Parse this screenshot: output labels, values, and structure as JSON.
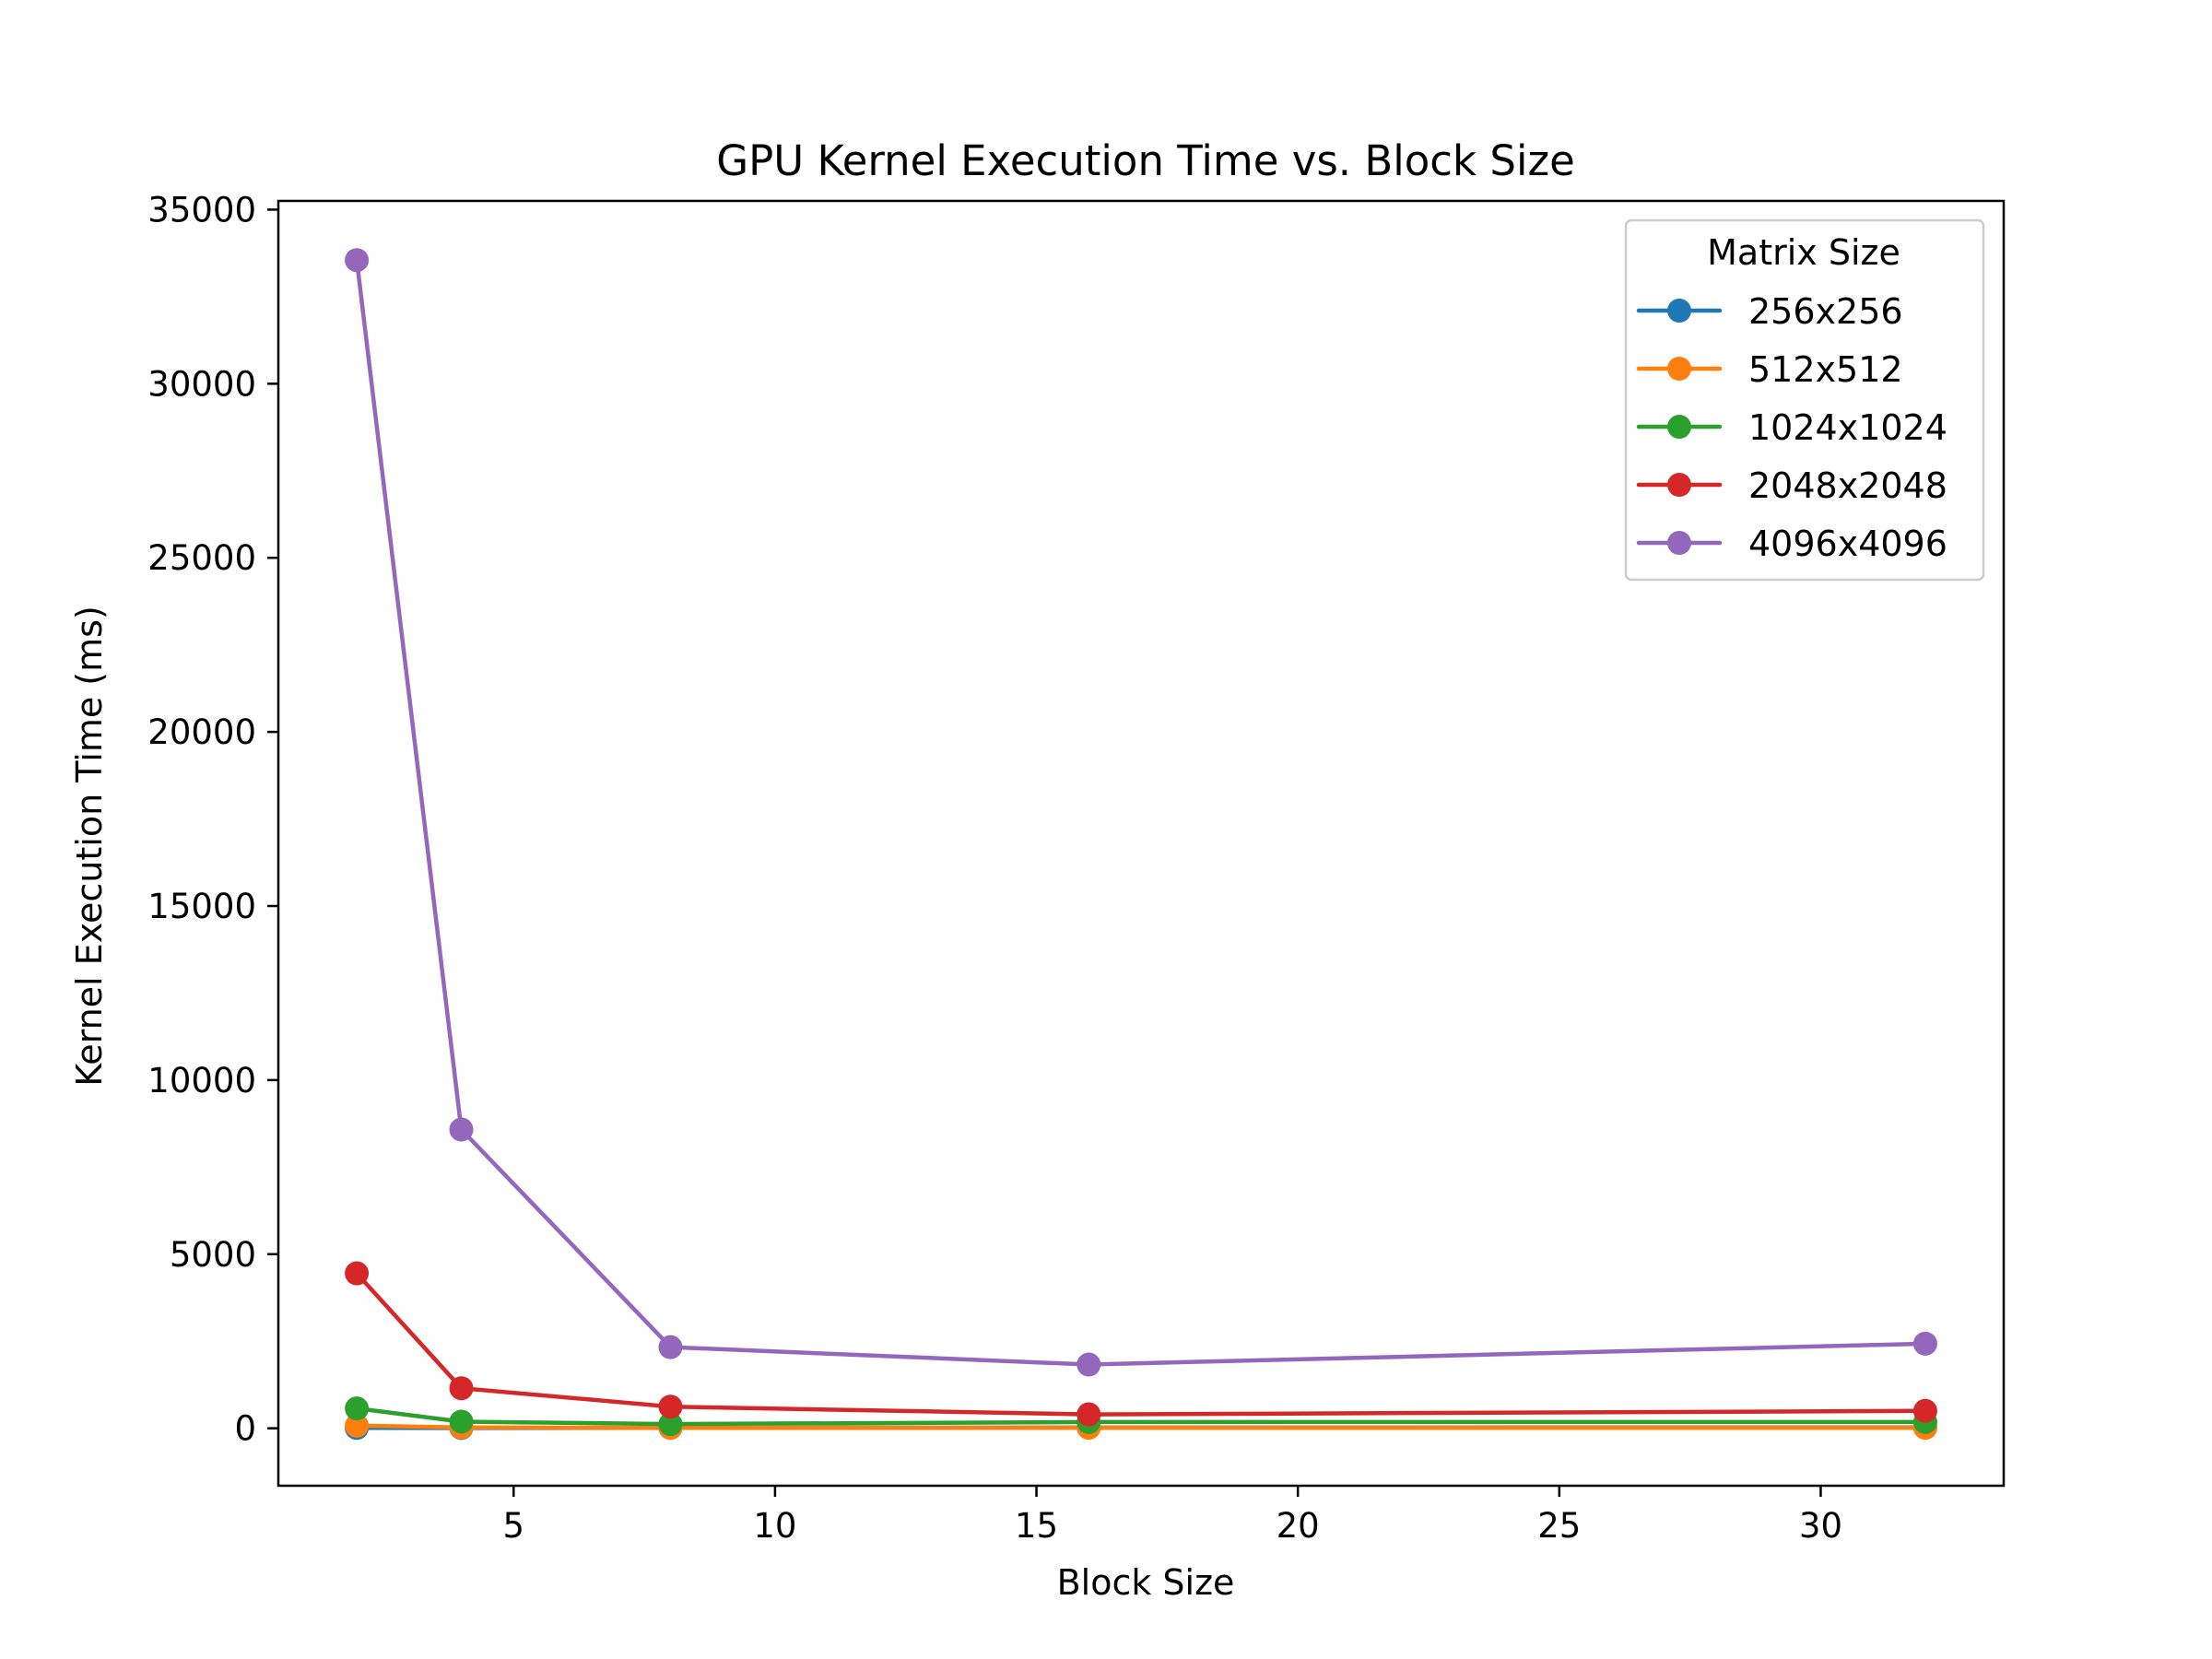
{
  "chart_data": {
    "type": "line",
    "title": "GPU Kernel Execution Time vs. Block Size",
    "xlabel": "Block Size",
    "ylabel": "Kernel Execution Time (ms)",
    "xlim": [
      0.5,
      33.5
    ],
    "ylim": [
      -1650,
      35250
    ],
    "xticks": [
      5,
      10,
      15,
      20,
      25,
      30
    ],
    "yticks": [
      0,
      5000,
      10000,
      15000,
      20000,
      25000,
      30000,
      35000
    ],
    "grid": false,
    "legend": {
      "title": "Matrix Size",
      "placement": "top-right"
    },
    "x": [
      2,
      4,
      8,
      16,
      32
    ],
    "series": [
      {
        "name": "256x256",
        "color": "#1f77b4",
        "values": [
          10,
          8,
          15,
          20,
          25
        ]
      },
      {
        "name": "512x512",
        "color": "#ff7f0e",
        "values": [
          75,
          25,
          10,
          15,
          15
        ]
      },
      {
        "name": "1024x1024",
        "color": "#2ca02c",
        "values": [
          570,
          190,
          120,
          180,
          180
        ]
      },
      {
        "name": "2048x2048",
        "color": "#d62728",
        "values": [
          4450,
          1150,
          620,
          400,
          500
        ]
      },
      {
        "name": "4096x4096",
        "color": "#9467bd",
        "values": [
          33550,
          8580,
          2330,
          1830,
          2430
        ]
      }
    ]
  }
}
